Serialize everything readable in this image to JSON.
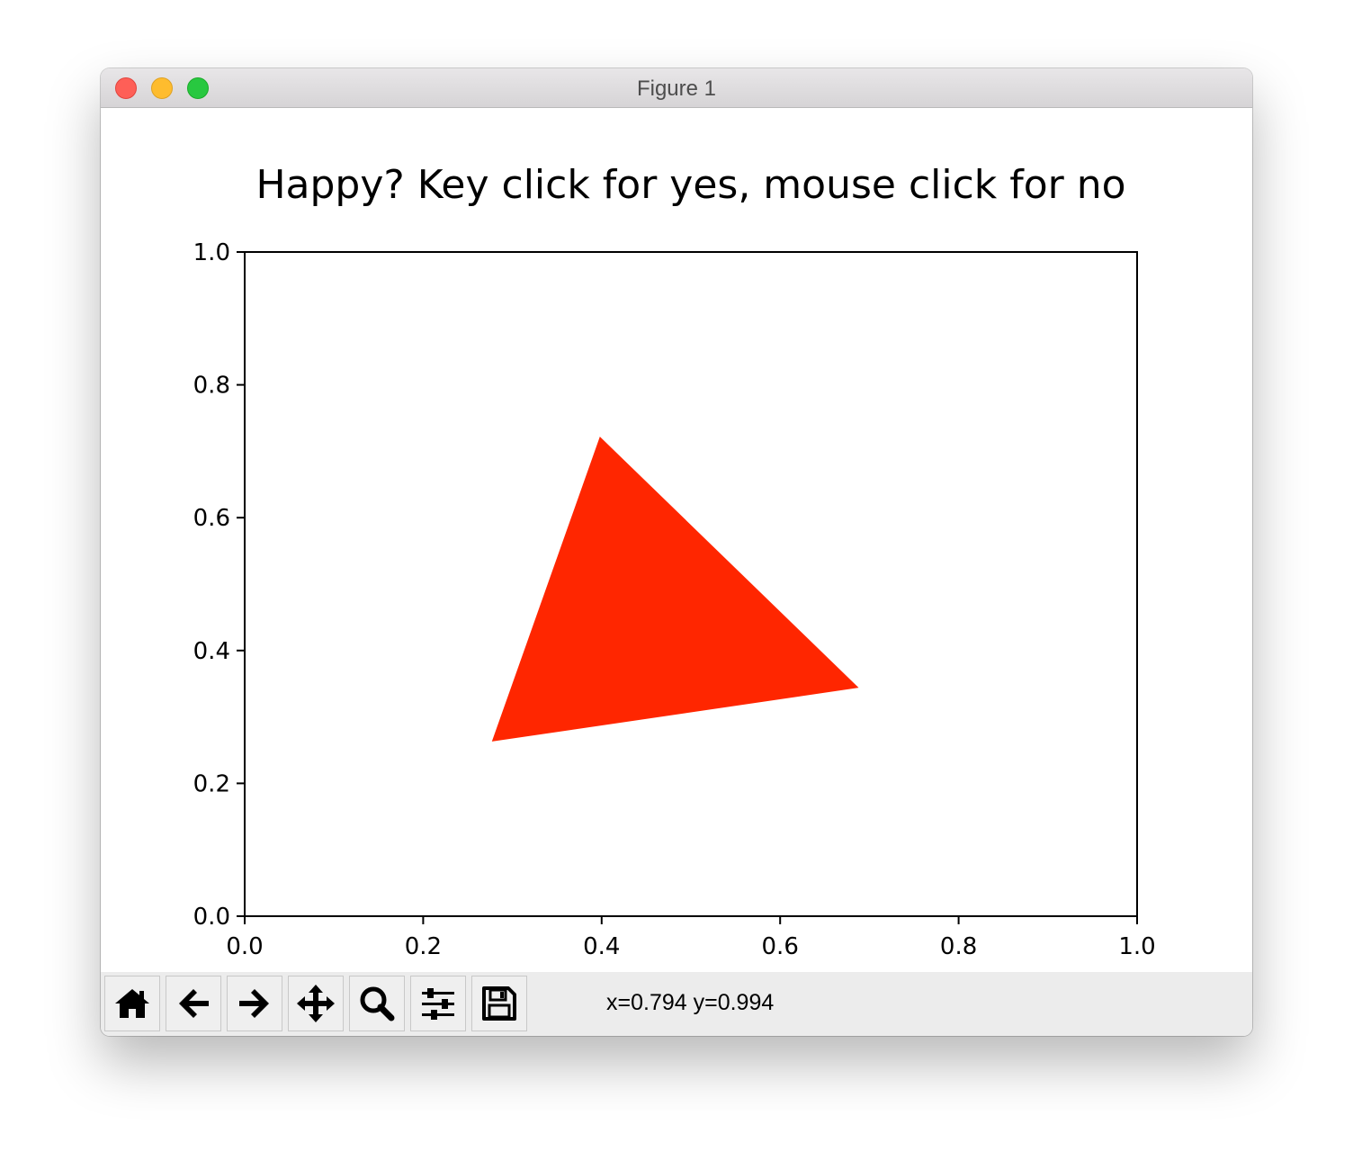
{
  "window": {
    "title": "Figure 1"
  },
  "chart_data": {
    "type": "polygon",
    "title": "Happy? Key click for yes, mouse click for no",
    "xlabel": "",
    "ylabel": "",
    "xlim": [
      0.0,
      1.0
    ],
    "ylim": [
      0.0,
      1.0
    ],
    "x_ticks": [
      "0.0",
      "0.2",
      "0.4",
      "0.6",
      "0.8",
      "1.0"
    ],
    "y_ticks": [
      "0.0",
      "0.2",
      "0.4",
      "0.6",
      "0.8",
      "1.0"
    ],
    "grid": false,
    "series": [
      {
        "shape": "triangle",
        "color": "#ff2600",
        "points": [
          [
            0.398,
            0.722
          ],
          [
            0.688,
            0.344
          ],
          [
            0.277,
            0.263
          ]
        ]
      }
    ]
  },
  "toolbar": {
    "buttons": [
      {
        "icon": "home-icon",
        "name": "home-button"
      },
      {
        "icon": "arrow-left-icon",
        "name": "back-button"
      },
      {
        "icon": "arrow-right-icon",
        "name": "forward-button"
      },
      {
        "icon": "move-icon",
        "name": "pan-button"
      },
      {
        "icon": "magnifier-icon",
        "name": "zoom-button"
      },
      {
        "icon": "sliders-icon",
        "name": "configure-subplots-button"
      },
      {
        "icon": "floppy-disk-icon",
        "name": "save-button"
      }
    ],
    "coords": "x=0.794 y=0.994"
  }
}
